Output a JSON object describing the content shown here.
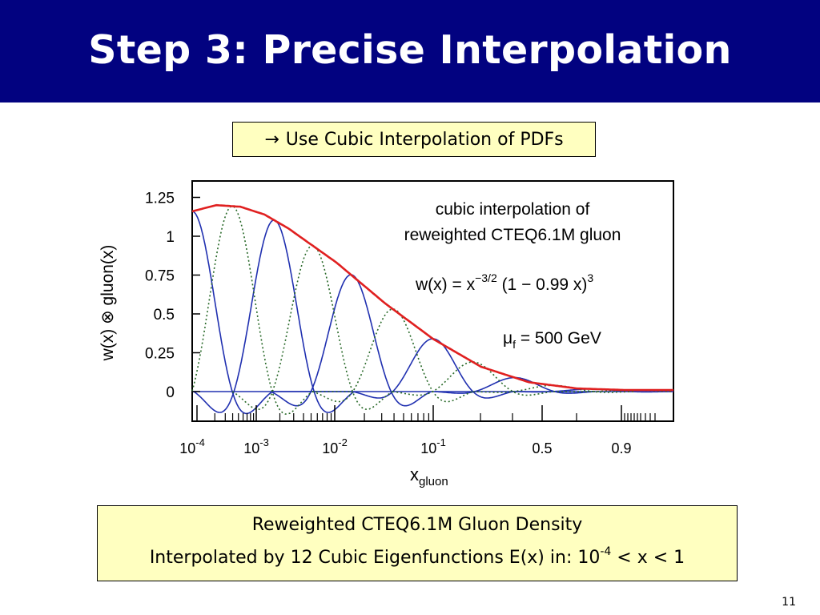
{
  "slide": {
    "title": "Step 3: Precise Interpolation",
    "callout_arrow": "→",
    "callout_text": "Use Cubic Interpolation of PDFs",
    "footer_line1": "Reweighted CTEQ6.1M Gluon Density",
    "footer_line2_prefix": "Interpolated by 12 Cubic Eigenfunctions E(x) in:  10",
    "footer_line2_exp": "-4",
    "footer_line2_suffix": " < x < 1",
    "page_number": "11",
    "colors": {
      "header": "#020280",
      "box_fill": "#ffffc0"
    }
  },
  "chart_data": {
    "type": "line",
    "ylabel": "w(x) ⊗ gluon(x)",
    "xlabel_main": "x",
    "xlabel_sub": "gluon",
    "ylim": [
      -0.2,
      1.35
    ],
    "yticks": [
      {
        "value": 1.25,
        "label": "1.25"
      },
      {
        "value": 1.0,
        "label": "1"
      },
      {
        "value": 0.75,
        "label": "0.75"
      },
      {
        "value": 0.5,
        "label": "0.5"
      },
      {
        "value": 0.25,
        "label": "0.25"
      },
      {
        "value": 0,
        "label": "0"
      }
    ],
    "xticks": [
      {
        "base": "10",
        "exp": "-4"
      },
      {
        "base": "10",
        "exp": "-3"
      },
      {
        "base": "10",
        "exp": "-2"
      },
      {
        "base": "10",
        "exp": "-1"
      },
      {
        "base": "0.5",
        "exp": ""
      },
      {
        "base": "0.9",
        "exp": ""
      }
    ],
    "annotations": {
      "line1": "cubic interpolation of",
      "line2": "reweighted CTEQ6.1M gluon",
      "formula_prefix": "w(x) = x",
      "formula_exp": "−3/2",
      "formula_mid": " (1 − 0.99 x)",
      "formula_exp2": "3",
      "scale_mu": "μ",
      "scale_sub": "f",
      "scale_value": " = 500 GeV"
    },
    "grid": false,
    "series": [
      {
        "role": "envelope",
        "color": "#e02020",
        "u": [
          0,
          0.05,
          0.1,
          0.15,
          0.2,
          0.3,
          0.4,
          0.5,
          0.6,
          0.7,
          0.8,
          0.9,
          0.95,
          1.0
        ],
        "y": [
          1.16,
          1.2,
          1.19,
          1.14,
          1.05,
          0.83,
          0.57,
          0.34,
          0.16,
          0.06,
          0.02,
          0.01,
          0.01,
          0.01
        ]
      },
      {
        "role": "eigenfunctions",
        "color": "#2030b0",
        "dash": "none",
        "peaks_u": [
          0,
          0.17,
          0.33,
          0.5,
          0.67,
          0.83
        ]
      },
      {
        "role": "eigenfunctions",
        "color": "#2a6a2a",
        "dash": "2,3",
        "peaks_u": [
          0.083,
          0.25,
          0.417,
          0.583,
          0.75,
          0.917
        ]
      }
    ]
  }
}
